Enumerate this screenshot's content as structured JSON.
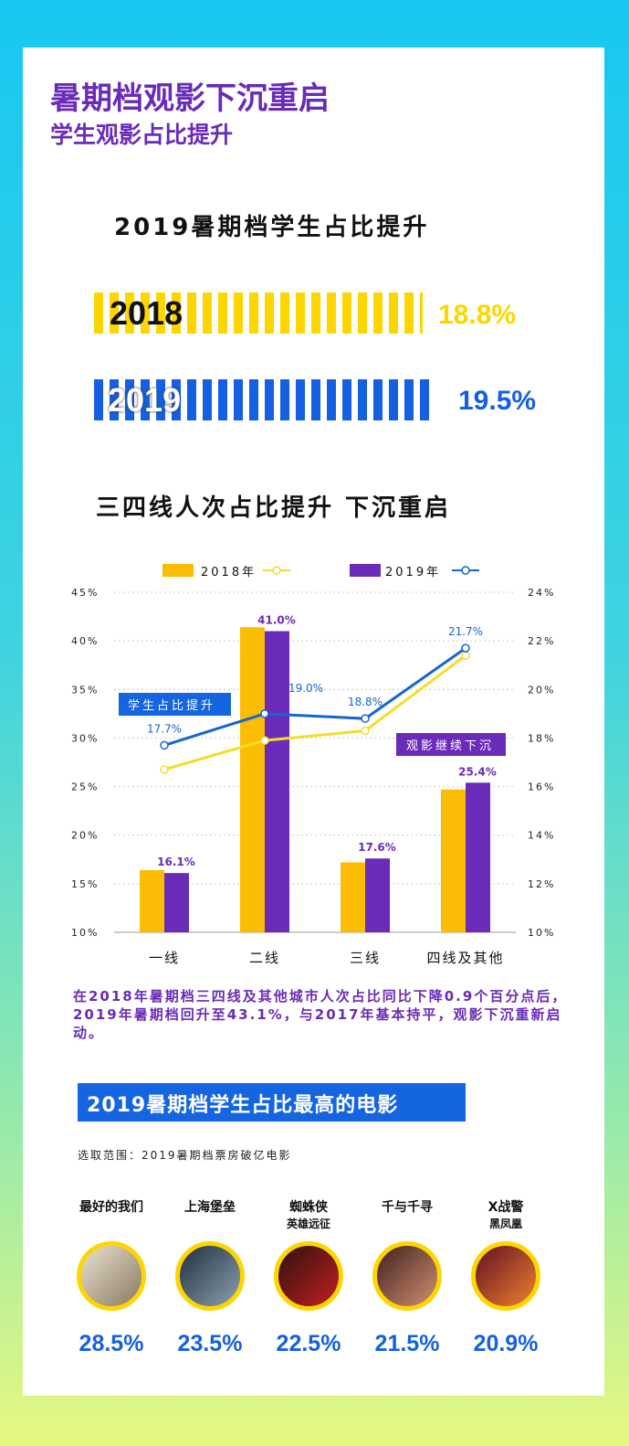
{
  "header": {
    "title": "暑期档观影下沉重启",
    "subtitle": "学生观影占比提升"
  },
  "section1": {
    "title": "2019暑期档学生占比提升",
    "rows": [
      {
        "year": "2018",
        "value": "18.8%",
        "fraction": 0.188,
        "color": "#fdd600"
      },
      {
        "year": "2019",
        "value": "19.5%",
        "fraction": 0.195,
        "color": "#1560e0"
      }
    ]
  },
  "chart_data": {
    "type": "bar+line",
    "title": "三四线人次占比提升 下沉重启",
    "categories": [
      "一线",
      "二线",
      "三线",
      "四线及其他"
    ],
    "legend": [
      "2018年",
      "2019年"
    ],
    "legend_position": "top",
    "left_axis": {
      "ylim": [
        10,
        45
      ],
      "ticks": [
        "10%",
        "15%",
        "20%",
        "25%",
        "30%",
        "35%",
        "40%",
        "45%"
      ]
    },
    "right_axis": {
      "ylim": [
        10,
        24
      ],
      "ticks": [
        "10%",
        "12%",
        "14%",
        "16%",
        "18%",
        "20%",
        "22%",
        "24%"
      ]
    },
    "bars": [
      {
        "name": "2018年",
        "color": "#fbbc04",
        "values": [
          16.4,
          41.4,
          17.2,
          24.7
        ]
      },
      {
        "name": "2019年",
        "color": "#6a2bb8",
        "values": [
          16.1,
          41.0,
          17.6,
          25.4
        ],
        "labels": [
          "16.1%",
          "41.0%",
          "17.6%",
          "25.4%"
        ]
      }
    ],
    "lines": [
      {
        "name": "2018年",
        "color": "#f6dc2a",
        "values": [
          16.7,
          17.9,
          18.3,
          21.4
        ]
      },
      {
        "name": "2019年",
        "color": "#1565d0",
        "values": [
          17.7,
          19.0,
          18.8,
          21.7
        ],
        "labels": [
          "17.7%",
          "19.0%",
          "18.8%",
          "21.7%"
        ]
      }
    ],
    "annotations": [
      "学生占比提升",
      "观影继续下沉"
    ]
  },
  "paragraph": "在2018年暑期档三四线及其他城市人次占比同比下降0.9个百分点后，2019年暑期档回升至43.1%，与2017年基本持平，观影下沉重新启动。",
  "movies_section": {
    "title": "2019暑期档学生占比最高的电影",
    "note": "选取范围：2019暑期档票房破亿电影",
    "movies": [
      {
        "title": "最好的我们",
        "sub": "",
        "value": "28.5%"
      },
      {
        "title": "上海堡垒",
        "sub": "",
        "value": "23.5%"
      },
      {
        "title": "蜘蛛侠",
        "sub": "英雄远征",
        "value": "22.5%"
      },
      {
        "title": "千与千寻",
        "sub": "",
        "value": "21.5%"
      },
      {
        "title": "X战警",
        "sub": "黑凤凰",
        "value": "20.9%"
      }
    ]
  }
}
